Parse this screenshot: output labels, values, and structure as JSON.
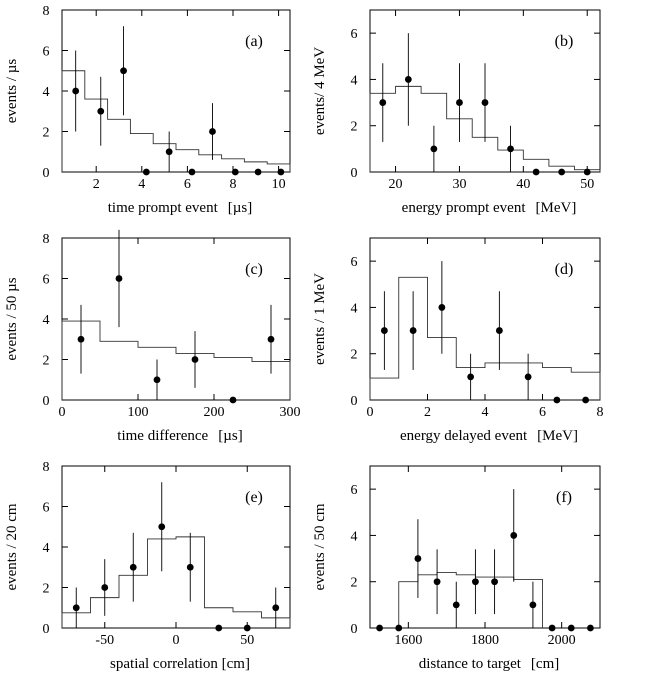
{
  "figure": {
    "description": ""
  },
  "chart_data": [
    {
      "id": "a",
      "type": "scatter+histogram",
      "panel_label": "(a)",
      "xlabel": "time prompt event",
      "xunit": "[µs]",
      "ylabel": "events / µs",
      "xlim": [
        0.5,
        10.5
      ],
      "ylim": [
        0,
        8
      ],
      "xticks": [
        2,
        4,
        6,
        8,
        10
      ],
      "yticks": [
        0,
        2,
        4,
        6,
        8
      ],
      "points": {
        "x": [
          1.1,
          2.2,
          3.2,
          4.2,
          5.2,
          6.2,
          7.1,
          8.1,
          9.1,
          10.1
        ],
        "y": [
          4,
          3,
          5,
          0,
          1,
          0,
          2,
          0,
          0,
          0
        ],
        "err_lo": [
          2,
          1.7,
          2.2,
          0,
          1.0,
          0,
          1.4,
          0,
          0,
          0
        ],
        "err_hi": [
          2,
          1.7,
          2.2,
          0,
          1.0,
          0,
          1.4,
          0,
          0,
          0
        ]
      },
      "histogram": {
        "edges": [
          0.5,
          1.5,
          2.5,
          3.5,
          4.5,
          5.5,
          6.5,
          7.5,
          8.5,
          9.5,
          10.5
        ],
        "values": [
          5.0,
          3.6,
          2.6,
          1.9,
          1.4,
          1.1,
          0.85,
          0.65,
          0.5,
          0.4
        ]
      },
      "baseline": 0
    },
    {
      "id": "b",
      "type": "scatter+histogram",
      "panel_label": "(b)",
      "xlabel": "energy prompt event",
      "xunit": "[MeV]",
      "ylabel": "events/ 4 MeV",
      "xlim": [
        16,
        52
      ],
      "ylim": [
        0,
        7
      ],
      "xticks": [
        20,
        30,
        40,
        50
      ],
      "yticks": [
        0,
        2,
        4,
        6
      ],
      "points": {
        "x": [
          18,
          22,
          26,
          30,
          34,
          38,
          42,
          46,
          50
        ],
        "y": [
          3,
          4,
          1,
          3,
          3,
          1,
          0,
          0,
          0
        ],
        "err_lo": [
          1.7,
          2.0,
          1.0,
          1.7,
          1.7,
          1.0,
          0,
          0,
          0
        ],
        "err_hi": [
          1.7,
          2.0,
          1.0,
          1.7,
          1.7,
          1.0,
          0,
          0,
          0
        ]
      },
      "histogram": {
        "edges": [
          16,
          20,
          24,
          28,
          32,
          36,
          40,
          44,
          48,
          52
        ],
        "values": [
          3.4,
          3.7,
          3.4,
          2.3,
          1.5,
          0.95,
          0.55,
          0.25,
          0.1
        ]
      },
      "baseline": 0
    },
    {
      "id": "c",
      "type": "scatter+histogram",
      "panel_label": "(c)",
      "xlabel": "time difference",
      "xunit": "[µs]",
      "ylabel": "events / 50 µs",
      "xlim": [
        0,
        300
      ],
      "ylim": [
        0,
        8
      ],
      "xticks": [
        0,
        100,
        200,
        300
      ],
      "yticks": [
        0,
        2,
        4,
        6,
        8
      ],
      "points": {
        "x": [
          25,
          75,
          125,
          175,
          225,
          275
        ],
        "y": [
          3,
          6,
          1,
          2,
          0,
          3
        ],
        "err_lo": [
          1.7,
          2.4,
          1.0,
          1.4,
          0,
          1.7
        ],
        "err_hi": [
          1.7,
          2.4,
          1.0,
          1.4,
          0,
          1.7
        ]
      },
      "histogram": {
        "edges": [
          0,
          50,
          100,
          150,
          200,
          250,
          300
        ],
        "values": [
          3.9,
          2.9,
          2.6,
          2.3,
          2.1,
          1.9
        ]
      },
      "baseline": 0
    },
    {
      "id": "d",
      "type": "scatter+histogram",
      "panel_label": "(d)",
      "xlabel": "energy delayed event",
      "xunit": "[MeV]",
      "ylabel": "events / 1 MeV",
      "xlim": [
        0,
        8
      ],
      "ylim": [
        0,
        7
      ],
      "xticks": [
        0,
        2,
        4,
        6,
        8
      ],
      "yticks": [
        0,
        2,
        4,
        6
      ],
      "points": {
        "x": [
          0.5,
          1.5,
          2.5,
          3.5,
          4.5,
          5.5,
          6.5,
          7.5
        ],
        "y": [
          3,
          3,
          4,
          1,
          3,
          1,
          0,
          0
        ],
        "err_lo": [
          1.7,
          1.7,
          2.0,
          1.0,
          1.7,
          1.0,
          0,
          0
        ],
        "err_hi": [
          1.7,
          1.7,
          2.0,
          1.0,
          1.7,
          1.0,
          0,
          0
        ]
      },
      "histogram": {
        "edges": [
          0,
          1,
          2,
          3,
          4,
          5,
          6,
          7,
          8
        ],
        "values": [
          0.95,
          5.3,
          2.7,
          1.4,
          1.6,
          1.6,
          1.4,
          1.2
        ]
      },
      "baseline": 0
    },
    {
      "id": "e",
      "type": "scatter+histogram",
      "panel_label": "(e)",
      "xlabel": "spatial correlation [cm]",
      "xunit": "",
      "ylabel": "events / 20 cm",
      "xlim": [
        -80,
        80
      ],
      "ylim": [
        0,
        8
      ],
      "xticks": [
        -50,
        0,
        50
      ],
      "yticks": [
        0,
        2,
        4,
        6,
        8
      ],
      "points": {
        "x": [
          -70,
          -50,
          -30,
          -10,
          10,
          30,
          50,
          70
        ],
        "y": [
          1,
          2,
          3,
          5,
          3,
          0,
          0,
          1
        ],
        "err_lo": [
          1.0,
          1.4,
          1.7,
          2.2,
          1.7,
          0,
          0,
          1.0
        ],
        "err_hi": [
          1.0,
          1.4,
          1.7,
          2.2,
          1.7,
          0,
          0,
          1.0
        ]
      },
      "histogram": {
        "edges": [
          -80,
          -60,
          -40,
          -20,
          0,
          20,
          40,
          60,
          80
        ],
        "values": [
          0.75,
          1.5,
          2.6,
          4.4,
          4.5,
          1.0,
          0.8,
          0.5
        ]
      },
      "baseline": 0
    },
    {
      "id": "f",
      "type": "scatter+histogram",
      "panel_label": "(f)",
      "xlabel": "distance to target",
      "xunit": "[cm]",
      "ylabel": "events / 50 cm",
      "xlim": [
        1500,
        2100
      ],
      "ylim": [
        0,
        7
      ],
      "xticks": [
        1600,
        1800,
        2000
      ],
      "yticks": [
        0,
        2,
        4,
        6
      ],
      "points": {
        "x": [
          1525,
          1575,
          1625,
          1675,
          1725,
          1775,
          1825,
          1875,
          1925,
          1975,
          2025,
          2075
        ],
        "y": [
          0,
          0,
          3,
          2,
          1,
          2,
          2,
          4,
          1,
          0,
          0,
          0
        ],
        "err_lo": [
          0,
          0,
          1.7,
          1.4,
          1.0,
          1.4,
          1.4,
          2.0,
          1.0,
          0,
          0,
          0
        ],
        "err_hi": [
          0,
          0,
          1.7,
          1.4,
          1.0,
          1.4,
          1.4,
          2.0,
          1.0,
          0,
          0,
          0
        ]
      },
      "histogram": {
        "edges": [
          1575,
          1625,
          1675,
          1725,
          1775,
          1825,
          1875,
          1950
        ],
        "values": [
          2.0,
          2.3,
          2.4,
          2.3,
          2.2,
          2.2,
          2.1
        ]
      },
      "baseline": 0
    }
  ]
}
